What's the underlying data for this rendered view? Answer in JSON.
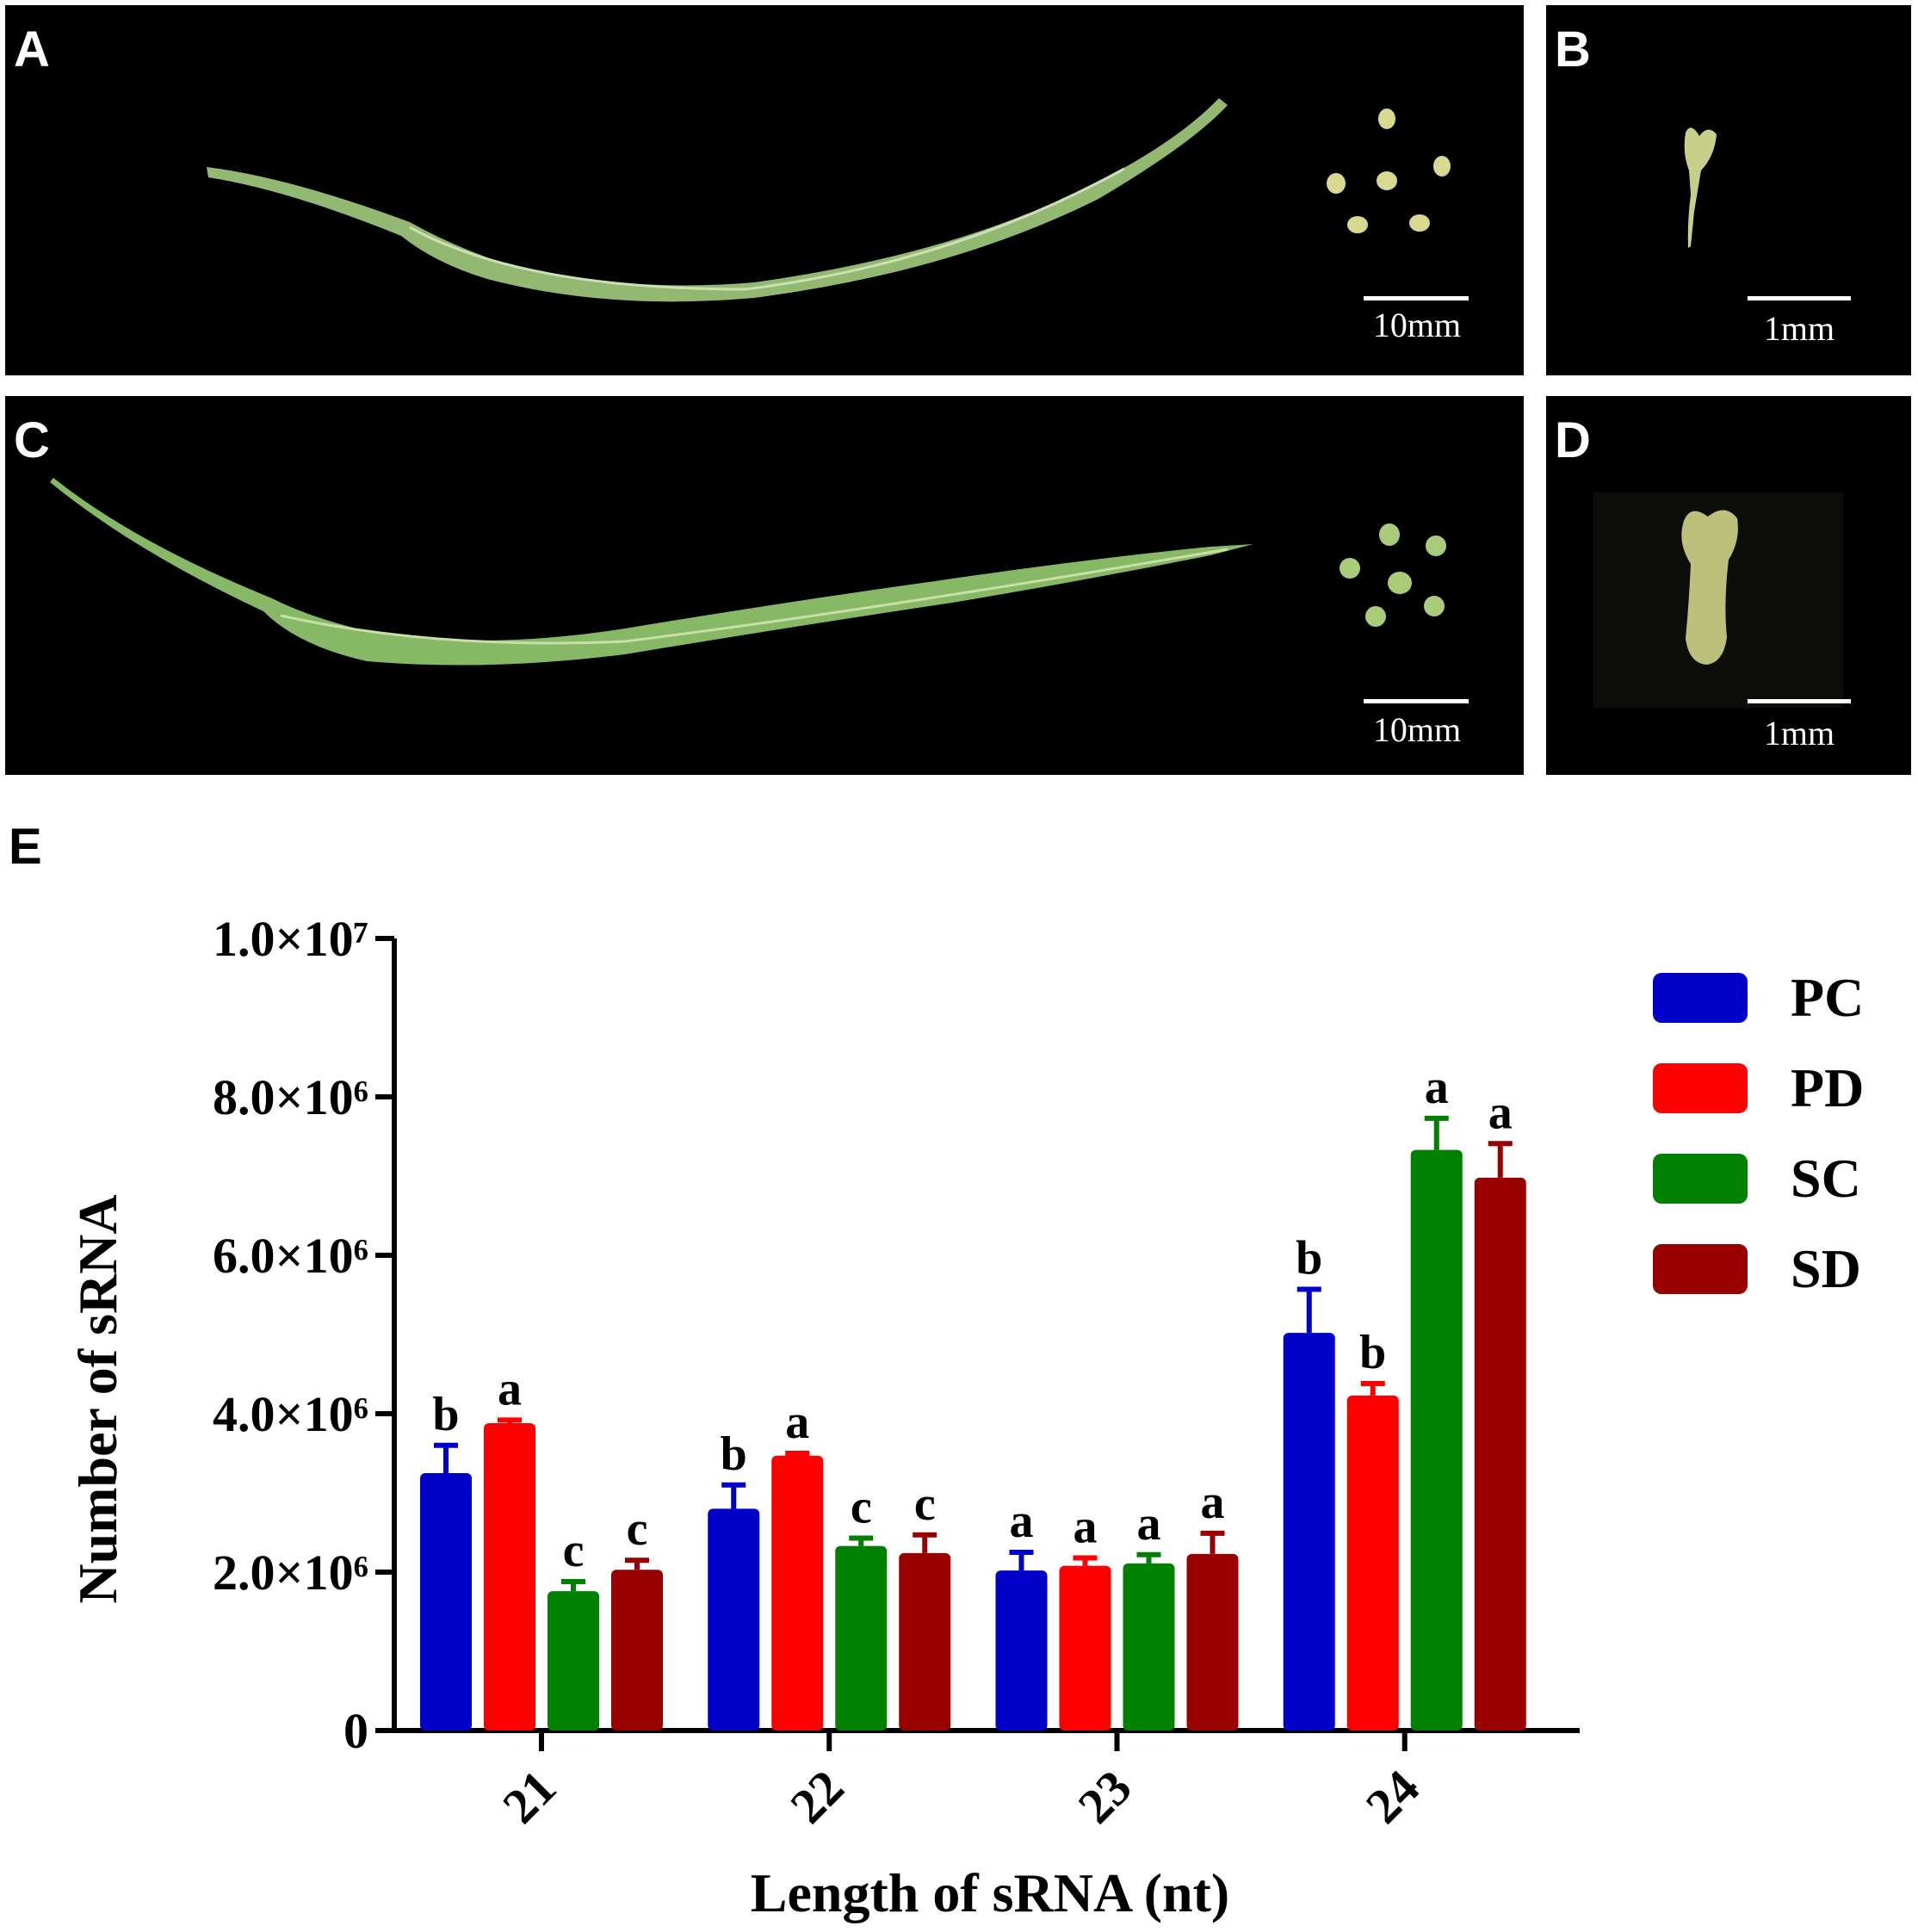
{
  "panels": {
    "A": {
      "letter": "A",
      "scale_label": "10mm",
      "seed_count": 6
    },
    "B": {
      "letter": "B",
      "scale_label": "1mm"
    },
    "C": {
      "letter": "C",
      "scale_label": "10mm",
      "seed_count": 6
    },
    "D": {
      "letter": "D",
      "scale_label": "1mm"
    },
    "E": {
      "letter": "E"
    }
  },
  "colors": {
    "PC": "#0000c8",
    "PD": "#ff0000",
    "SC": "#008000",
    "SD": "#990000",
    "silique_green": "#8fbf6a",
    "seed_yellow": "#d8d890"
  },
  "chart_data": {
    "type": "bar",
    "title": "",
    "xlabel": "Length of sRNA (nt)",
    "ylabel": "Number of  sRNA",
    "categories": [
      "21",
      "22",
      "23",
      "24"
    ],
    "ylim": [
      0,
      10000000
    ],
    "yticks": [
      {
        "value": 0,
        "label": "0"
      },
      {
        "value": 2000000,
        "label": "2.0×10⁶"
      },
      {
        "value": 4000000,
        "label": "4.0×10⁶"
      },
      {
        "value": 6000000,
        "label": "6.0×10⁶"
      },
      {
        "value": 8000000,
        "label": "8.0×10⁶"
      },
      {
        "value": 10000000,
        "label": "1.0×10⁷"
      }
    ],
    "legend_position": "top-right",
    "series": [
      {
        "name": "PC",
        "values": [
          3250000,
          2800000,
          2020000,
          5020000
        ],
        "errors": [
          350000,
          300000,
          230000,
          550000
        ],
        "letters": [
          "b",
          "b",
          "a",
          "b"
        ]
      },
      {
        "name": "PD",
        "values": [
          3880000,
          3470000,
          2080000,
          4230000
        ],
        "errors": [
          40000,
          30000,
          100000,
          150000
        ],
        "letters": [
          "a",
          "a",
          "a",
          "b"
        ]
      },
      {
        "name": "SC",
        "values": [
          1760000,
          2330000,
          2110000,
          7330000
        ],
        "errors": [
          120000,
          100000,
          110000,
          400000
        ],
        "letters": [
          "c",
          "c",
          "a",
          "a"
        ]
      },
      {
        "name": "SD",
        "values": [
          2030000,
          2240000,
          2230000,
          6980000
        ],
        "errors": [
          120000,
          230000,
          260000,
          430000
        ],
        "letters": [
          "c",
          "c",
          "a",
          "a"
        ]
      }
    ]
  }
}
